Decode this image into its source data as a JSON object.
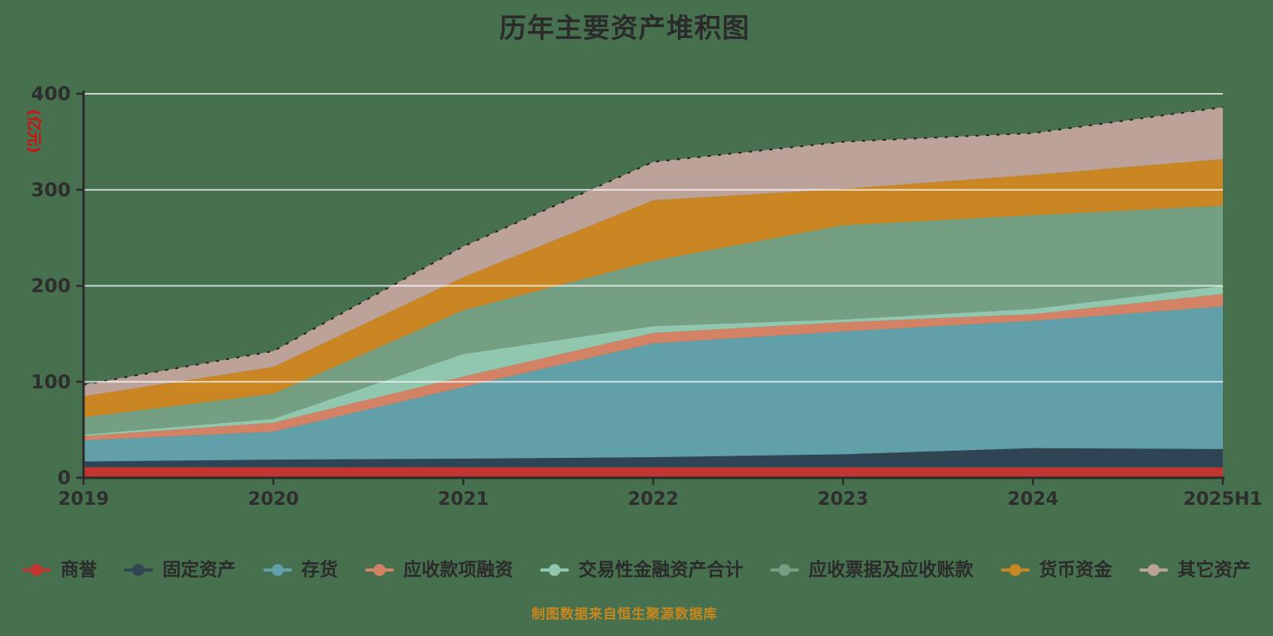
{
  "title": "历年主要资产堆积图",
  "unit_label": "(亿元)",
  "source_note": "制图数据来自恒生聚源数据库",
  "colors": {
    "background": "#47714E",
    "title_text": "#2b2b2b",
    "axis_line": "#2b2b2b",
    "tick_label": "#2e2e2e",
    "gridline": "rgba(255,255,255,0.72)",
    "unit_label_text": "#d01212",
    "legend_text": "#2b2b2b",
    "source_note_text": "#c8861e",
    "top_edge_line": "#1f1f1f"
  },
  "chart_data": {
    "type": "area",
    "stacked": true,
    "title": "历年主要资产堆积图",
    "xlabel": "",
    "ylabel": "(亿元)",
    "categories": [
      "2019",
      "2020",
      "2021",
      "2022",
      "2023",
      "2024",
      "2025H1"
    ],
    "ylim": [
      0,
      400
    ],
    "yticks": [
      0,
      100,
      200,
      300,
      400
    ],
    "grid": true,
    "legend_position": "bottom",
    "series": [
      {
        "name": "商誉",
        "color": "#c23531",
        "values": [
          11,
          11,
          11,
          11,
          11,
          11,
          11
        ]
      },
      {
        "name": "固定资产",
        "color": "#2f4554",
        "values": [
          6,
          8,
          9,
          10.5,
          13.5,
          20,
          19
        ]
      },
      {
        "name": "存货",
        "color": "#61a0a8",
        "values": [
          22,
          29,
          74.5,
          118.5,
          128,
          132.5,
          148.5
        ]
      },
      {
        "name": "应收款项融资",
        "color": "#d48265",
        "values": [
          4.5,
          9.5,
          11,
          11,
          9.5,
          7,
          13
        ]
      },
      {
        "name": "交易性金融资产合计",
        "color": "#91c7ae",
        "values": [
          1.5,
          4,
          23.5,
          7,
          3,
          5.5,
          8.5
        ]
      },
      {
        "name": "应收票据及应收账款",
        "color": "#749f83",
        "values": [
          18,
          26,
          45.5,
          68,
          98,
          97.5,
          83.5
        ]
      },
      {
        "name": "货币资金",
        "color": "#ca8622",
        "values": [
          22,
          28,
          34.5,
          63,
          38,
          42,
          48.5
        ]
      },
      {
        "name": "其它资产",
        "color": "#bda29a",
        "values": [
          12,
          16.5,
          32,
          40,
          49,
          43.5,
          54
        ]
      }
    ]
  }
}
